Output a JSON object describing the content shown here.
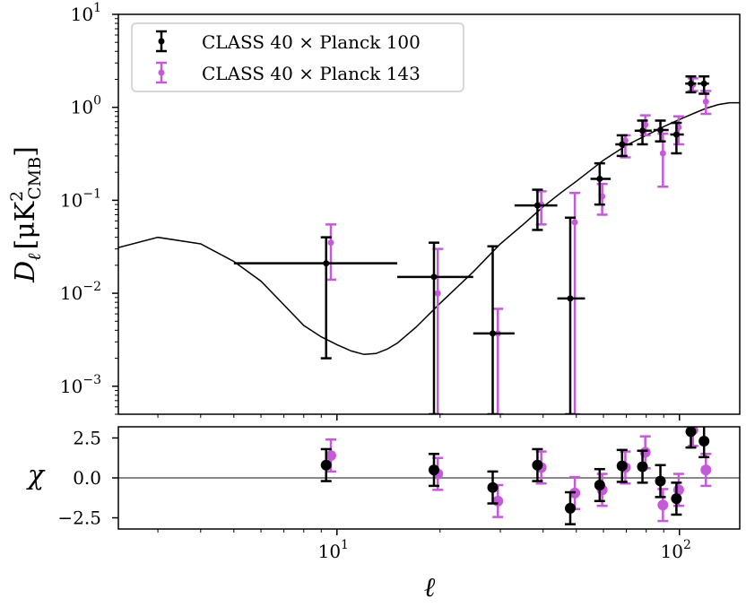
{
  "chart_data": [
    {
      "type": "scatter",
      "panel": "top",
      "xscale": "log",
      "yscale": "log",
      "xlim": [
        2.3,
        150
      ],
      "ylim": [
        0.0005,
        10
      ],
      "ylabel": "D_ℓ [μK²_CMB]",
      "ylabel_main": "D",
      "ylabel_sub": "ℓ",
      "ylabel_unit_open": "[μK",
      "ylabel_unit_sup": "2",
      "ylabel_unit_sub": "CMB",
      "ylabel_unit_close": "]",
      "yticks": [
        {
          "base": "10",
          "exp": "1",
          "value": 10
        },
        {
          "base": "10",
          "exp": "0",
          "value": 1
        },
        {
          "base": "10",
          "exp": "−1",
          "value": 0.1
        },
        {
          "base": "10",
          "exp": "−2",
          "value": 0.01
        },
        {
          "base": "10",
          "exp": "−3",
          "value": 0.001
        }
      ],
      "legend_position": "upper-left",
      "legend": [
        {
          "label": "CLASS 40 × Planck 100",
          "color": "#000000"
        },
        {
          "label": "CLASS 40 × Planck 143",
          "color": "#c45ad8"
        }
      ],
      "model_curve": {
        "x": [
          2.3,
          3,
          4,
          5,
          6,
          7,
          8,
          9,
          10,
          11,
          12,
          13,
          14,
          15,
          17,
          20,
          25,
          30,
          35,
          40,
          45,
          50,
          60,
          70,
          80,
          90,
          100,
          110,
          120,
          130,
          140,
          150
        ],
        "y": [
          0.031,
          0.04,
          0.034,
          0.022,
          0.0135,
          0.0075,
          0.0045,
          0.0034,
          0.0028,
          0.0024,
          0.0022,
          0.00225,
          0.0025,
          0.0029,
          0.0043,
          0.0078,
          0.017,
          0.034,
          0.055,
          0.085,
          0.12,
          0.16,
          0.27,
          0.39,
          0.5,
          0.62,
          0.74,
          0.86,
          0.98,
          1.07,
          1.12,
          1.12
        ]
      },
      "series": [
        {
          "name": "CLASS 40 × Planck 100",
          "color": "#000000",
          "points": [
            {
              "x": 9.3,
              "y": 0.021,
              "ylo": 0.002,
              "yhi": 0.04,
              "xlo": 5.0,
              "xhi": 15.0
            },
            {
              "x": 19.2,
              "y": 0.015,
              "ylo": 0.0005,
              "yhi": 0.035,
              "xlo": 15.0,
              "xhi": 25.0
            },
            {
              "x": 28.5,
              "y": 0.0037,
              "ylo": 0.0005,
              "yhi": 0.032,
              "xlo": 25.0,
              "xhi": 33.0
            },
            {
              "x": 38.5,
              "y": 0.088,
              "ylo": 0.048,
              "yhi": 0.13,
              "xlo": 33.0,
              "xhi": 44.0
            },
            {
              "x": 48.0,
              "y": 0.0088,
              "ylo": 0.0005,
              "yhi": 0.065,
              "xlo": 44.0,
              "xhi": 53.0
            },
            {
              "x": 58.5,
              "y": 0.17,
              "ylo": 0.09,
              "yhi": 0.25,
              "xlo": 55.0,
              "xhi": 63.0
            },
            {
              "x": 68.0,
              "y": 0.4,
              "ylo": 0.3,
              "yhi": 0.5,
              "xlo": 65.0,
              "xhi": 73.0
            },
            {
              "x": 78.0,
              "y": 0.56,
              "ylo": 0.4,
              "yhi": 0.72,
              "xlo": 74.0,
              "xhi": 83.0
            },
            {
              "x": 88.0,
              "y": 0.57,
              "ylo": 0.43,
              "yhi": 0.72,
              "xlo": 84.0,
              "xhi": 93.0
            },
            {
              "x": 98.0,
              "y": 0.51,
              "ylo": 0.32,
              "yhi": 0.68,
              "xlo": 94.0,
              "xhi": 103.0
            },
            {
              "x": 108.0,
              "y": 1.8,
              "ylo": 1.45,
              "yhi": 2.15,
              "xlo": 104.0,
              "xhi": 112.0
            },
            {
              "x": 118.0,
              "y": 1.8,
              "ylo": 1.4,
              "yhi": 2.15,
              "xlo": 113.0,
              "xhi": 122.0
            }
          ]
        },
        {
          "name": "CLASS 40 × Planck 143",
          "color": "#c45ad8",
          "points": [
            {
              "x": 9.6,
              "y": 0.035,
              "ylo": 0.014,
              "yhi": 0.055
            },
            {
              "x": 19.7,
              "y": 0.01,
              "ylo": 0.0005,
              "yhi": 0.03
            },
            {
              "x": 29.5,
              "y": 0.0037,
              "ylo": 0.0005,
              "yhi": 0.0068
            },
            {
              "x": 39.5,
              "y": 0.09,
              "ylo": 0.055,
              "yhi": 0.125
            },
            {
              "x": 49.5,
              "y": 0.058,
              "ylo": 0.0005,
              "yhi": 0.12
            },
            {
              "x": 59.5,
              "y": 0.11,
              "ylo": 0.07,
              "yhi": 0.15
            },
            {
              "x": 69.5,
              "y": 0.44,
              "ylo": 0.29,
              "yhi": 0.5
            },
            {
              "x": 79.5,
              "y": 0.65,
              "ylo": 0.5,
              "yhi": 0.82
            },
            {
              "x": 89.5,
              "y": 0.32,
              "ylo": 0.14,
              "yhi": 0.52
            },
            {
              "x": 99.5,
              "y": 0.61,
              "ylo": 0.4,
              "yhi": 0.8
            },
            {
              "x": 109.5,
              "y": 1.75,
              "ylo": 1.5,
              "yhi": 2.05
            },
            {
              "x": 119.5,
              "y": 1.15,
              "ylo": 0.85,
              "yhi": 1.5
            }
          ]
        }
      ]
    },
    {
      "type": "scatter",
      "panel": "bottom",
      "xscale": "log",
      "xlim": [
        2.3,
        150
      ],
      "ylim": [
        -3.2,
        3.2
      ],
      "xlabel": "ℓ",
      "ylabel": "χ",
      "xticks": [
        {
          "base": "10",
          "exp": "1",
          "value": 10
        },
        {
          "base": "10",
          "exp": "2",
          "value": 100
        }
      ],
      "yticks": [
        "2.5",
        "0.0",
        "−2.5"
      ],
      "ytick_values": [
        2.5,
        0.0,
        -2.5
      ],
      "zero_line_color": "#888888",
      "series": [
        {
          "name": "CLASS 40 × Planck 100",
          "color": "#000000",
          "points": [
            {
              "x": 9.3,
              "y": 0.8,
              "err": 1.0
            },
            {
              "x": 19.2,
              "y": 0.5,
              "err": 1.0
            },
            {
              "x": 28.5,
              "y": -0.6,
              "err": 1.0
            },
            {
              "x": 38.5,
              "y": 0.8,
              "err": 1.0
            },
            {
              "x": 48.0,
              "y": -1.9,
              "err": 1.0
            },
            {
              "x": 58.5,
              "y": -0.45,
              "err": 1.0
            },
            {
              "x": 68.0,
              "y": 0.75,
              "err": 1.0
            },
            {
              "x": 78.0,
              "y": 0.7,
              "err": 1.0
            },
            {
              "x": 88.0,
              "y": -0.2,
              "err": 1.0
            },
            {
              "x": 98.0,
              "y": -1.3,
              "err": 1.0
            },
            {
              "x": 108.0,
              "y": 2.9,
              "err": 1.0
            },
            {
              "x": 118.0,
              "y": 2.3,
              "err": 1.0
            }
          ]
        },
        {
          "name": "CLASS 40 × Planck 143",
          "color": "#c45ad8",
          "points": [
            {
              "x": 9.6,
              "y": 1.4,
              "err": 1.0
            },
            {
              "x": 19.7,
              "y": 0.25,
              "err": 1.0
            },
            {
              "x": 29.5,
              "y": -1.45,
              "err": 1.0
            },
            {
              "x": 39.5,
              "y": 0.65,
              "err": 1.0
            },
            {
              "x": 49.5,
              "y": -0.95,
              "err": 1.0
            },
            {
              "x": 59.5,
              "y": -0.75,
              "err": 1.0
            },
            {
              "x": 69.5,
              "y": 0.65,
              "err": 1.0
            },
            {
              "x": 79.5,
              "y": 1.6,
              "err": 1.0
            },
            {
              "x": 89.5,
              "y": -1.7,
              "err": 1.0
            },
            {
              "x": 99.5,
              "y": -0.75,
              "err": 1.0
            },
            {
              "x": 109.5,
              "y": 3.0,
              "err": 1.0
            },
            {
              "x": 119.5,
              "y": 0.5,
              "err": 1.0
            }
          ]
        }
      ]
    }
  ]
}
